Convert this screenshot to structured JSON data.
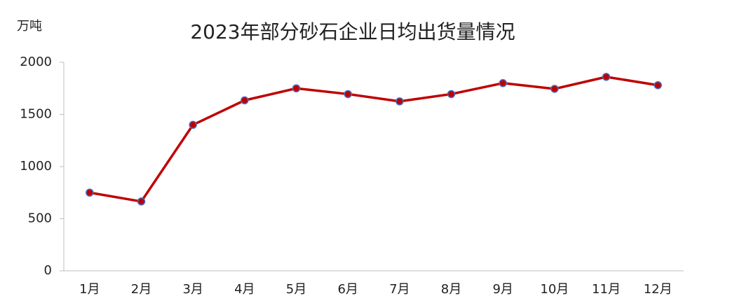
{
  "chart_data": {
    "type": "line",
    "title": "2023年部分砂石企业日均出货量情况",
    "y_label": "万吨",
    "categories": [
      "1月",
      "2月",
      "3月",
      "4月",
      "5月",
      "6月",
      "7月",
      "8月",
      "9月",
      "10月",
      "11月",
      "12月"
    ],
    "series": [
      {
        "color": "#c00000",
        "marker_edge": "#4472c4",
        "values": [
          750,
          665,
          1400,
          1635,
          1750,
          1695,
          1625,
          1695,
          1800,
          1745,
          1860,
          1780
        ]
      }
    ],
    "ylim": [
      0,
      2000
    ],
    "yticks": [
      0,
      500,
      1000,
      1500,
      2000
    ],
    "grid": false
  }
}
